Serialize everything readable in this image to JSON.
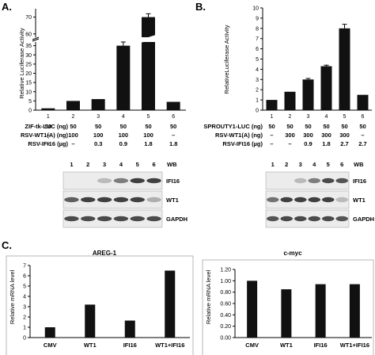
{
  "panels": [
    {
      "letter": "A."
    },
    {
      "letter": "B."
    },
    {
      "letter": "C."
    }
  ],
  "colors": {
    "bar": "#111111",
    "axis": "#000000",
    "blot_bg": "#ececec",
    "band": "#222222"
  },
  "chart_data": [
    {
      "type": "bar",
      "panel": "A",
      "categories": [
        "1",
        "2",
        "3",
        "4",
        "5",
        "6"
      ],
      "values": [
        1.0,
        5.0,
        6.0,
        35.0,
        70.0,
        4.5
      ],
      "errors": [
        0,
        0,
        0,
        2,
        2,
        0
      ],
      "ylabel": "Relative Luciferase Activity",
      "yticks": [
        "0",
        "5",
        "10",
        "15",
        "20",
        "25",
        "30",
        "35",
        "60",
        "70"
      ],
      "axis_break": {
        "lower": [
          0,
          37
        ],
        "upper": [
          58,
          75
        ]
      },
      "conditions": [
        {
          "label": "ZIF-tk-LUC (ng)",
          "values": [
            "50",
            "50",
            "50",
            "50",
            "50",
            "50"
          ]
        },
        {
          "label": "RSV-WT1(A) (ng)",
          "values": [
            "–",
            "100",
            "100",
            "100",
            "100",
            "–"
          ]
        },
        {
          "label": "RSV-IFI16 (µg)",
          "values": [
            "–",
            "–",
            "0.3",
            "0.9",
            "1.8",
            "1.8"
          ]
        }
      ],
      "blot": {
        "lanes": [
          "1",
          "2",
          "3",
          "4",
          "5",
          "6"
        ],
        "header": "WB",
        "bands": [
          "IFI16",
          "WT1",
          "GAPDH"
        ]
      }
    },
    {
      "type": "bar",
      "panel": "B",
      "categories": [
        "1",
        "2",
        "3",
        "4",
        "5",
        "6"
      ],
      "values": [
        1.0,
        1.8,
        3.0,
        4.3,
        8.0,
        1.5
      ],
      "errors": [
        0,
        0,
        0.1,
        0.1,
        0.4,
        0
      ],
      "ylabel": "RelativeLuciferase Activity",
      "ylim": [
        0,
        10
      ],
      "yticks": [
        "0",
        "1",
        "2",
        "3",
        "4",
        "5",
        "6",
        "7",
        "8",
        "9",
        "10"
      ],
      "conditions": [
        {
          "label": "SPROUTY1-LUC (ng)",
          "values": [
            "50",
            "50",
            "50",
            "50",
            "50",
            "50"
          ]
        },
        {
          "label": "RSV-WT1(A) (ng)",
          "values": [
            "–",
            "300",
            "300",
            "300",
            "300",
            "–"
          ]
        },
        {
          "label": "RSV-IFI16 (µg)",
          "values": [
            "–",
            "–",
            "0.9",
            "1.8",
            "2.7",
            "2.7"
          ]
        }
      ],
      "blot": {
        "lanes": [
          "1",
          "2",
          "3",
          "4",
          "5",
          "6"
        ],
        "header": "WB",
        "bands": [
          "IFI16",
          "WT1",
          "GAPDH"
        ]
      }
    },
    {
      "type": "bar",
      "panel": "C-left",
      "title": "AREG-1",
      "categories": [
        "CMV",
        "WT1",
        "IFI16",
        "WT1+IFI16"
      ],
      "values": [
        1.0,
        3.2,
        1.65,
        6.5
      ],
      "ylabel": "Relative mRNA level",
      "ylim": [
        0,
        7
      ],
      "yticks": [
        "0",
        "1",
        "2",
        "3",
        "4",
        "5",
        "6",
        "7"
      ]
    },
    {
      "type": "bar",
      "panel": "C-right",
      "title": "c-myc",
      "categories": [
        "CMV",
        "WT1",
        "IFI16",
        "WT1+IFI16"
      ],
      "values": [
        1.0,
        0.85,
        0.94,
        0.94
      ],
      "ylabel": "Relative mRNA level",
      "ylim": [
        0,
        1.2
      ],
      "yticks": [
        "0.00",
        "0.20",
        "0.40",
        "0.60",
        "0.80",
        "1.00",
        "1.20"
      ]
    }
  ]
}
